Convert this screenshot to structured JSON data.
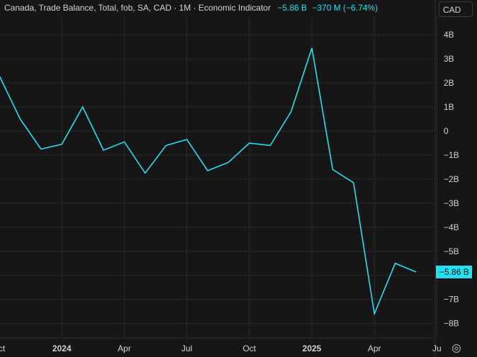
{
  "legend": {
    "title": "Canada, Trade Balance, Total, fob, SA, CAD · 1M · Economic Indicator",
    "last_value": "−5.86 B",
    "change": "−370 M (−6.74%)"
  },
  "currency_button": "CAD",
  "last_price_label": "−5.86 B",
  "colors": {
    "background": "#161616",
    "grid": "#2a2a2a",
    "line": "#26e0f2",
    "text": "#d1d4dc"
  },
  "icons": {
    "settings": "gear-icon"
  },
  "chart_data": {
    "type": "line",
    "series": [
      {
        "values": [
          2.3,
          0.5,
          -0.75,
          -0.55,
          1.0,
          -0.8,
          -0.45,
          -1.75,
          -0.6,
          -0.35,
          -1.65,
          -1.3,
          -0.5,
          -0.6,
          0.8,
          3.45,
          -1.6,
          -2.15,
          -7.6,
          -5.5,
          -5.86
        ]
      }
    ],
    "x_start_index": 0,
    "ylim": [
      -8.6,
      4.8
    ],
    "y_ticks": [
      4,
      3,
      2,
      1,
      0,
      -1,
      -2,
      -3,
      -4,
      -5,
      -7,
      -8
    ],
    "y_tick_labels": [
      "4B",
      "3B",
      "2B",
      "1B",
      "0",
      "−1B",
      "−2B",
      "−3B",
      "−4B",
      "−5B",
      "−7B",
      "−8B"
    ],
    "x_tick_labels": [
      "ct",
      "2024",
      "Apr",
      "Jul",
      "Oct",
      "2025",
      "Apr",
      "Ju"
    ],
    "x_tick_positions": [
      -0.2,
      3,
      6,
      9,
      12,
      15,
      18,
      21
    ],
    "grid": true
  }
}
